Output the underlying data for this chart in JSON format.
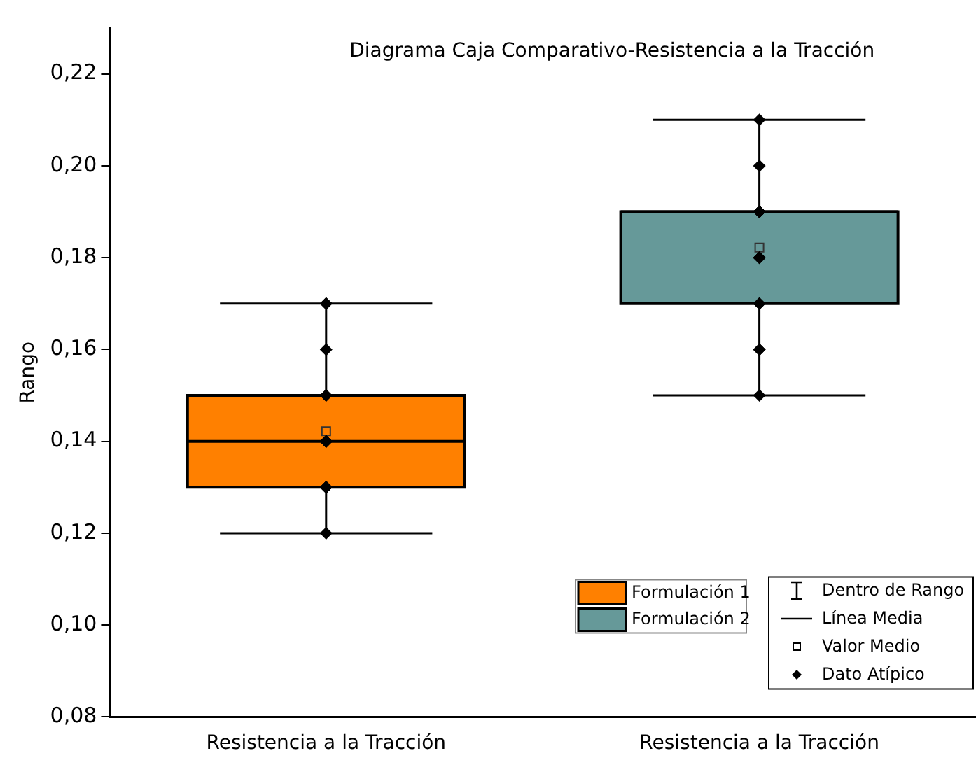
{
  "chart_data": {
    "type": "box",
    "title": "Diagrama Caja Comparativo-Resistencia a la Tracción",
    "ylabel": "Rango",
    "categories": [
      "Resistencia a la Tracción",
      "Resistencia a la Tracción"
    ],
    "series": [
      {
        "name": "Formulación 1",
        "color": "#ff8000",
        "boxes": [
          {
            "low": 0.12,
            "q1": 0.13,
            "median": 0.14,
            "q3": 0.15,
            "high": 0.17,
            "mean": 0.1422,
            "outliers": [
              0.17,
              0.17,
              0.16,
              0.15,
              0.15,
              0.14,
              0.14,
              0.14,
              0.14,
              0.14,
              0.13,
              0.13,
              0.13,
              0.13,
              0.12
            ]
          },
          null
        ]
      },
      {
        "name": "Formulación 2",
        "color": "#669999",
        "boxes": [
          null,
          {
            "low": 0.15,
            "q1": 0.17,
            "median": 0.19,
            "q3": 0.19,
            "high": 0.21,
            "mean": 0.1822,
            "outliers": [
              0.21,
              0.2,
              0.19,
              0.19,
              0.19,
              0.19,
              0.19,
              0.18,
              0.18,
              0.18,
              0.17,
              0.17,
              0.16,
              0.16,
              0.15
            ]
          }
        ]
      }
    ],
    "ylim": [
      0.08,
      0.23
    ],
    "yticks": [
      {
        "value": 0.08,
        "label": "0,08"
      },
      {
        "value": 0.1,
        "label": "0,10"
      },
      {
        "value": 0.12,
        "label": "0,12"
      },
      {
        "value": 0.14,
        "label": "0,14"
      },
      {
        "value": 0.16,
        "label": "0,16"
      },
      {
        "value": 0.18,
        "label": "0,18"
      },
      {
        "value": 0.2,
        "label": "0,20"
      },
      {
        "value": 0.22,
        "label": "0,22"
      }
    ],
    "annotations": [
      "Dentro de Rango",
      "Línea Media",
      "Valor Medio",
      "Dato Atípico"
    ],
    "legend": "bottom right",
    "grid": false
  }
}
